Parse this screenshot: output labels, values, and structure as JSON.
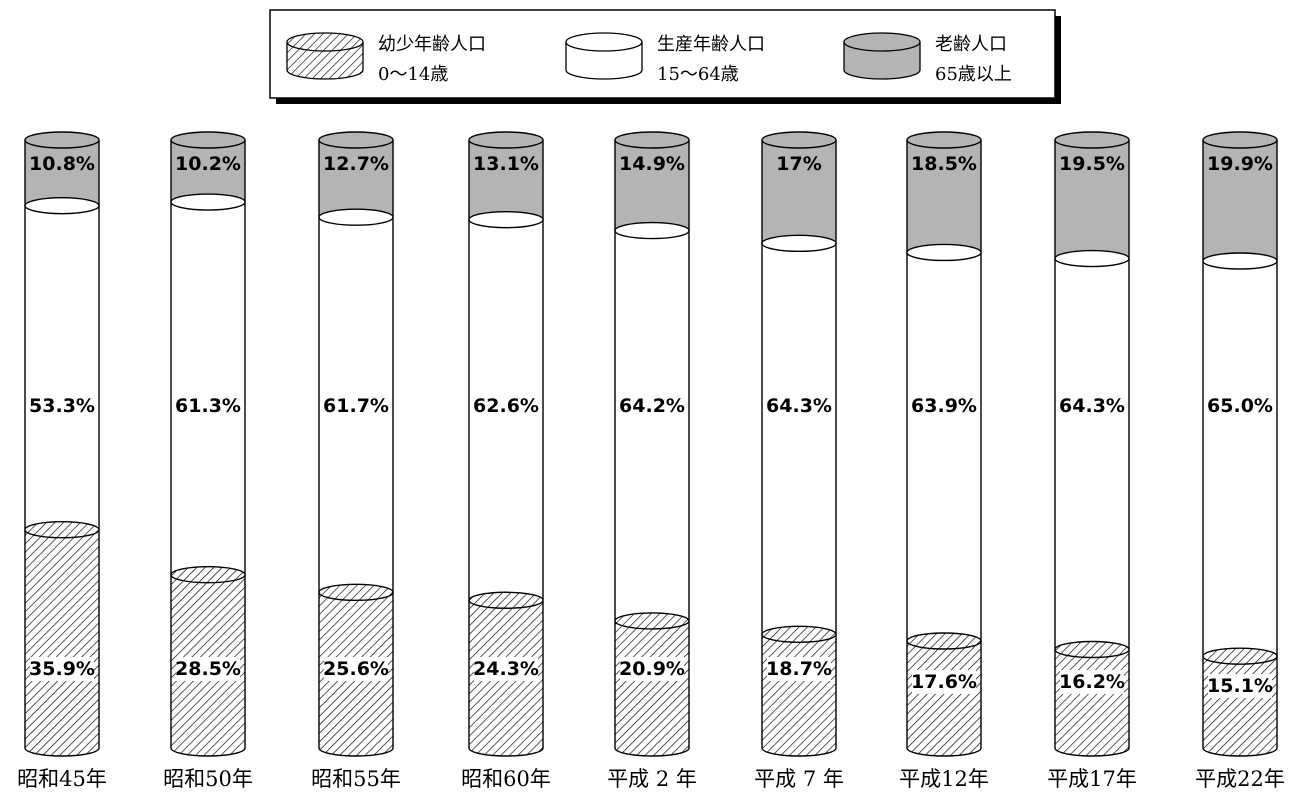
{
  "chart_data": {
    "type": "bar",
    "stacked": true,
    "style": "3d-cylinder",
    "title": "",
    "xlabel": "",
    "ylabel": "",
    "ylim": [
      0,
      100
    ],
    "grid": false,
    "legend_position": "top-center",
    "categories": [
      "昭和45年",
      "昭和50年",
      "昭和55年",
      "昭和60年",
      "平成 2 年",
      "平成 7 年",
      "平成12年",
      "平成17年",
      "平成22年"
    ],
    "series": [
      {
        "key": "young",
        "legend_line1": "幼少年齢人口",
        "legend_line2": "0〜14歳",
        "values": [
          35.9,
          28.5,
          25.6,
          24.3,
          20.9,
          18.7,
          17.6,
          16.2,
          15.1
        ],
        "labels": [
          "35.9%",
          "28.5%",
          "25.6%",
          "24.3%",
          "20.9%",
          "18.7%",
          "17.6%",
          "16.2%",
          "15.1%"
        ],
        "fill": "hatch"
      },
      {
        "key": "working",
        "legend_line1": "生産年齢人口",
        "legend_line2": "15〜64歳",
        "values": [
          53.3,
          61.3,
          61.7,
          62.6,
          64.2,
          64.3,
          63.9,
          64.3,
          65.0
        ],
        "labels": [
          "53.3%",
          "61.3%",
          "61.7%",
          "62.6%",
          "64.2%",
          "64.3%",
          "63.9%",
          "64.3%",
          "65.0%"
        ],
        "fill": "#ffffff"
      },
      {
        "key": "elderly",
        "legend_line1": "老齢人口",
        "legend_line2": "65歳以上",
        "values": [
          10.8,
          10.2,
          12.7,
          13.1,
          14.9,
          17,
          18.5,
          19.5,
          19.9
        ],
        "labels": [
          "10.8%",
          "10.2%",
          "12.7%",
          "13.1%",
          "14.9%",
          "17%",
          "18.5%",
          "19.5%",
          "19.9%"
        ],
        "fill": "#b4b4b4"
      }
    ]
  }
}
